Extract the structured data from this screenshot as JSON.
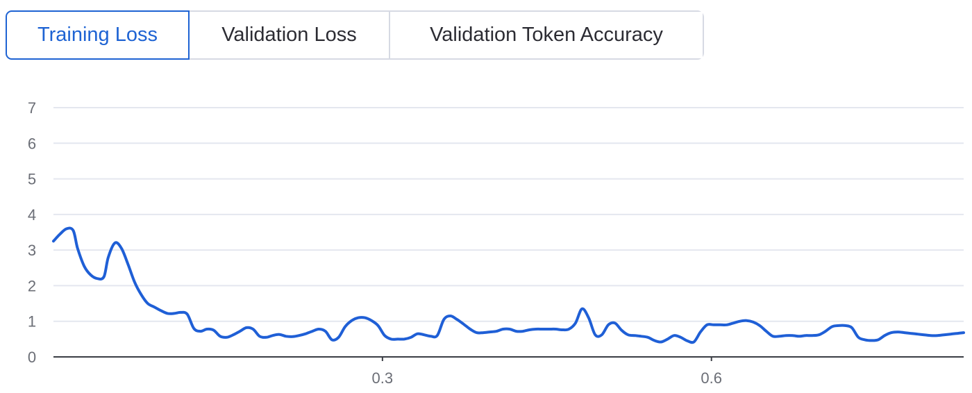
{
  "tabs": [
    {
      "label": "Training Loss",
      "active": true
    },
    {
      "label": "Validation Loss",
      "active": false
    },
    {
      "label": "Validation Token Accuracy",
      "active": false
    }
  ],
  "colors": {
    "accent": "#1e63d3",
    "series": "#1f5fd6",
    "grid": "#e4e7ef",
    "tick": "#6b6e76"
  },
  "chart_data": {
    "type": "line",
    "title": "",
    "xlabel": "",
    "ylabel": "",
    "ylim": [
      0,
      7
    ],
    "xlim": [
      0,
      0.83
    ],
    "yticks": [
      0,
      1,
      2,
      3,
      4,
      5,
      6,
      7
    ],
    "xticks": [
      0.3,
      0.6
    ],
    "grid": true,
    "series": [
      {
        "x": [
          0.0,
          0.006,
          0.012,
          0.018,
          0.022,
          0.028,
          0.034,
          0.04,
          0.046,
          0.05,
          0.056,
          0.062,
          0.068,
          0.074,
          0.08,
          0.086,
          0.092,
          0.098,
          0.104,
          0.11,
          0.116,
          0.122,
          0.128,
          0.134,
          0.14,
          0.146,
          0.152,
          0.158,
          0.164,
          0.17,
          0.176,
          0.182,
          0.188,
          0.194,
          0.2,
          0.206,
          0.212,
          0.218,
          0.224,
          0.23,
          0.236,
          0.242,
          0.248,
          0.254,
          0.26,
          0.266,
          0.272,
          0.278,
          0.284,
          0.29,
          0.296,
          0.302,
          0.308,
          0.314,
          0.32,
          0.326,
          0.332,
          0.338,
          0.344,
          0.35,
          0.356,
          0.362,
          0.368,
          0.374,
          0.38,
          0.386,
          0.392,
          0.398,
          0.404,
          0.41,
          0.416,
          0.422,
          0.428,
          0.434,
          0.44,
          0.446,
          0.452,
          0.458,
          0.464,
          0.47,
          0.476,
          0.482,
          0.488,
          0.494,
          0.5,
          0.506,
          0.512,
          0.518,
          0.524,
          0.53,
          0.536,
          0.542,
          0.548,
          0.554,
          0.56,
          0.566,
          0.572,
          0.578,
          0.584,
          0.59,
          0.596,
          0.602,
          0.608,
          0.614,
          0.62,
          0.626,
          0.632,
          0.638,
          0.644,
          0.65,
          0.656,
          0.662,
          0.668,
          0.674,
          0.68,
          0.686,
          0.692,
          0.698,
          0.704,
          0.71,
          0.716,
          0.722,
          0.728,
          0.734,
          0.74,
          0.746,
          0.752,
          0.758,
          0.764,
          0.77,
          0.776,
          0.782,
          0.788,
          0.794,
          0.8,
          0.806,
          0.812,
          0.818,
          0.824,
          0.83
        ],
        "y": [
          3.25,
          3.45,
          3.6,
          3.55,
          3.05,
          2.55,
          2.3,
          2.2,
          2.25,
          2.8,
          3.2,
          3.05,
          2.6,
          2.1,
          1.75,
          1.5,
          1.4,
          1.3,
          1.22,
          1.22,
          1.25,
          1.2,
          0.8,
          0.72,
          0.78,
          0.75,
          0.58,
          0.55,
          0.62,
          0.72,
          0.82,
          0.78,
          0.58,
          0.55,
          0.6,
          0.63,
          0.58,
          0.57,
          0.6,
          0.65,
          0.72,
          0.78,
          0.72,
          0.48,
          0.55,
          0.85,
          1.02,
          1.1,
          1.1,
          1.02,
          0.88,
          0.6,
          0.5,
          0.5,
          0.5,
          0.55,
          0.65,
          0.62,
          0.58,
          0.6,
          1.05,
          1.15,
          1.05,
          0.92,
          0.78,
          0.68,
          0.68,
          0.7,
          0.72,
          0.78,
          0.78,
          0.72,
          0.72,
          0.76,
          0.78,
          0.78,
          0.78,
          0.78,
          0.76,
          0.78,
          0.95,
          1.35,
          1.1,
          0.62,
          0.62,
          0.9,
          0.95,
          0.75,
          0.62,
          0.6,
          0.58,
          0.55,
          0.46,
          0.42,
          0.5,
          0.6,
          0.55,
          0.45,
          0.42,
          0.7,
          0.9,
          0.9,
          0.9,
          0.9,
          0.95,
          1.0,
          1.02,
          0.98,
          0.88,
          0.72,
          0.58,
          0.58,
          0.6,
          0.6,
          0.58,
          0.6,
          0.6,
          0.62,
          0.72,
          0.85,
          0.88,
          0.88,
          0.82,
          0.55,
          0.48,
          0.46,
          0.48,
          0.6,
          0.68,
          0.7,
          0.68,
          0.66,
          0.64,
          0.62,
          0.6,
          0.6,
          0.62,
          0.64,
          0.66,
          0.68
        ]
      }
    ]
  }
}
